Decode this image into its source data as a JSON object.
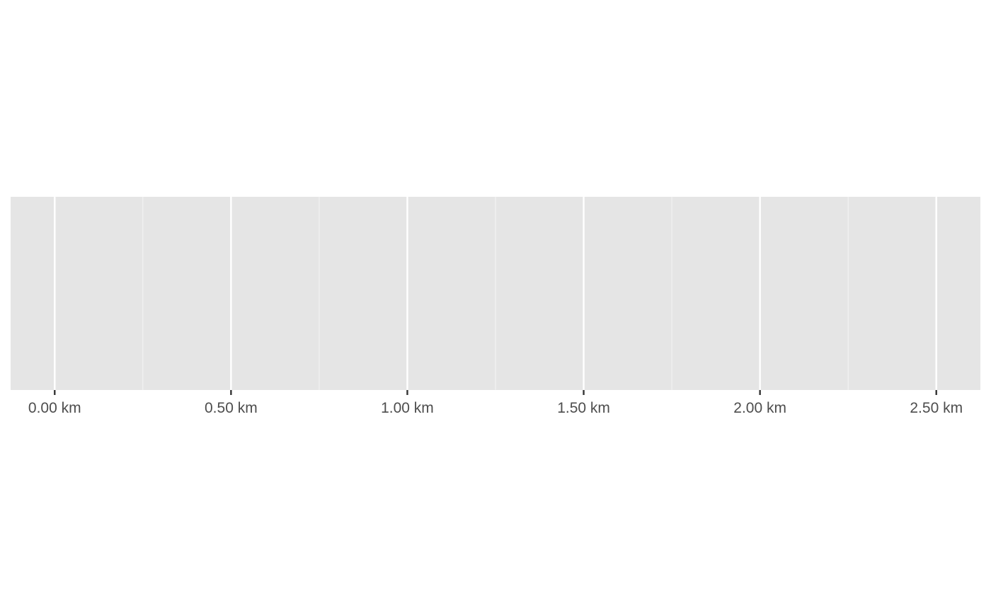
{
  "chart_data": {
    "type": "scatter",
    "title": "",
    "xlabel": "",
    "ylabel": "",
    "xlim": [
      -0.125,
      2.625
    ],
    "x_ticks": [
      0,
      0.5,
      1.0,
      1.5,
      2.0,
      2.5
    ],
    "x_tick_labels": [
      "0.00 km",
      "0.50 km",
      "1.00 km",
      "1.50 km",
      "2.00 km",
      "2.50 km"
    ],
    "x_minor_ticks": [
      0.25,
      0.75,
      1.25,
      1.75,
      2.25
    ],
    "y_ticks": [],
    "series": [],
    "grid": true,
    "legend": "none",
    "colors": {
      "panel_background": "#e5e5e5",
      "grid_major": "#ffffff",
      "grid_minor": "#f2f2f2",
      "tick_mark": "#333333",
      "tick_label": "#4d4d4d"
    }
  }
}
